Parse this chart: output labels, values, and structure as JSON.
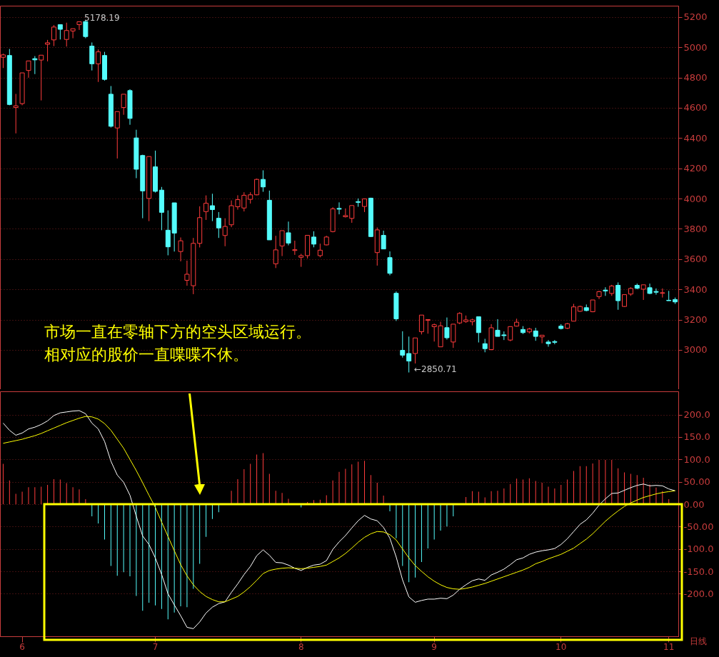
{
  "chart_data": [
    {
      "type": "candlestick",
      "categories": [
        null,
        null,
        null,
        "6",
        null,
        null,
        null,
        null,
        null,
        null,
        null,
        null,
        null,
        null,
        null,
        null,
        null,
        null,
        null,
        null,
        null,
        null,
        null,
        null,
        "7",
        null,
        null,
        null,
        null,
        null,
        null,
        null,
        null,
        null,
        null,
        null,
        null,
        null,
        null,
        null,
        null,
        null,
        null,
        null,
        null,
        null,
        null,
        "8",
        null,
        null,
        null,
        null,
        null,
        null,
        null,
        null,
        null,
        null,
        null,
        null,
        null,
        null,
        null,
        null,
        null,
        null,
        null,
        null,
        "9",
        null,
        null,
        null,
        null,
        null,
        null,
        null,
        null,
        null,
        null,
        null,
        null,
        null,
        null,
        null,
        null,
        null,
        null,
        null,
        "10",
        null,
        null,
        null,
        null,
        null,
        null,
        null,
        null,
        null,
        null,
        null,
        null,
        null,
        null,
        null,
        null,
        "11",
        null
      ],
      "ohlc": [
        [
          4934,
          4958,
          4863,
          4950
        ],
        [
          4946,
          4989,
          4617,
          4622
        ],
        [
          4602,
          4692,
          4431,
          4613
        ],
        [
          4628,
          4831,
          4617,
          4831
        ],
        [
          4847,
          4910,
          4799,
          4910
        ],
        [
          4925,
          4942,
          4823,
          4917
        ],
        [
          4916,
          4948,
          4649,
          4948
        ],
        [
          5020,
          5049,
          4907,
          5030
        ],
        [
          5049,
          5147,
          5008,
          5134
        ],
        [
          5150,
          5150,
          5052,
          5119
        ],
        [
          5052,
          5163,
          5005,
          5111
        ],
        [
          5108,
          5123,
          5060,
          5123
        ],
        [
          5150,
          5170,
          5115,
          5169
        ],
        [
          5170,
          5178.19,
          5060,
          5071
        ],
        [
          5008,
          5032,
          4847,
          4891
        ],
        [
          4891,
          4986,
          4771,
          4970
        ],
        [
          4946,
          4970,
          4780,
          4788
        ],
        [
          4690,
          4744,
          4470,
          4478
        ],
        [
          4467,
          4575,
          4265,
          4575
        ],
        [
          4602,
          4690,
          4554,
          4690
        ],
        [
          4714,
          4723,
          4488,
          4530
        ],
        [
          4401,
          4455,
          4135,
          4194
        ],
        [
          4285,
          4290,
          3870,
          4051
        ],
        [
          4001,
          4278,
          3851,
          4278
        ],
        [
          4210,
          4317,
          4040,
          4048
        ],
        [
          4056,
          4077,
          3791,
          3909
        ],
        [
          3791,
          3922,
          3625,
          3681
        ],
        [
          3972,
          3972,
          3650,
          3772
        ],
        [
          3650,
          3743,
          3585,
          3721
        ],
        [
          3460,
          3590,
          3424,
          3500
        ],
        [
          3424,
          3740,
          3368,
          3704
        ],
        [
          3704,
          3949,
          3677,
          3874
        ],
        [
          3914,
          4021,
          3859,
          3969
        ],
        [
          3953,
          4032,
          3851,
          3927
        ],
        [
          3870,
          3911,
          3740,
          3806
        ],
        [
          3756,
          3870,
          3685,
          3816
        ],
        [
          3827,
          3988,
          3811,
          3953
        ],
        [
          3946,
          4022,
          3927,
          3993
        ],
        [
          3938,
          4042,
          3915,
          4022
        ],
        [
          3995,
          4042,
          3967,
          4025
        ],
        [
          4025,
          4132,
          4022,
          4127
        ],
        [
          4127,
          4187,
          4045,
          4077
        ],
        [
          3989,
          4053,
          3727,
          3727
        ],
        [
          3569,
          3754,
          3541,
          3661
        ],
        [
          3687,
          3788,
          3620,
          3788
        ],
        [
          3774,
          3848,
          3691,
          3706
        ],
        [
          3657,
          3722,
          3628,
          3662
        ],
        [
          3612,
          3635,
          3549,
          3623
        ],
        [
          3623,
          3757,
          3604,
          3757
        ],
        [
          3746,
          3784,
          3678,
          3699
        ],
        [
          3623,
          3702,
          3612,
          3659
        ],
        [
          3694,
          3754,
          3691,
          3746
        ],
        [
          3782,
          3943,
          3777,
          3932
        ],
        [
          3935,
          3975,
          3896,
          3930
        ],
        [
          3880,
          3935,
          3875,
          3888
        ],
        [
          3869,
          3954,
          3840,
          3954
        ],
        [
          3980,
          4001,
          3946,
          3975
        ],
        [
          3948,
          4001,
          3911,
          3998
        ],
        [
          4003,
          4006,
          3746,
          3749
        ],
        [
          3643,
          3809,
          3557,
          3793
        ],
        [
          3757,
          3788,
          3667,
          3667
        ],
        [
          3610,
          3651,
          3493,
          3506
        ],
        [
          3374,
          3386,
          3191,
          3205
        ],
        [
          2997,
          3123,
          2949,
          2965
        ],
        [
          2976,
          3088,
          2850.71,
          2926
        ],
        [
          2976,
          3079,
          2910,
          3079
        ],
        [
          3120,
          3230,
          3102,
          3230
        ],
        [
          3195,
          3202,
          3107,
          3200
        ],
        [
          3153,
          3174,
          3055,
          3166
        ],
        [
          3020,
          3186,
          3020,
          3159
        ],
        [
          3147,
          3214,
          3068,
          3080
        ],
        [
          3052,
          3170,
          3013,
          3170
        ],
        [
          3178,
          3249,
          3170,
          3241
        ],
        [
          3187,
          3227,
          3179,
          3198
        ],
        [
          3186,
          3206,
          3162,
          3198
        ],
        [
          3219,
          3219,
          3049,
          3114
        ],
        [
          3041,
          3073,
          2984,
          3008
        ],
        [
          3002,
          3170,
          2997,
          3146
        ],
        [
          3130,
          3203,
          3089,
          3089
        ],
        [
          3099,
          3122,
          3065,
          3094
        ],
        [
          3065,
          3154,
          3057,
          3154
        ],
        [
          3157,
          3206,
          3154,
          3183
        ],
        [
          3135,
          3157,
          3105,
          3114
        ],
        [
          3119,
          3146,
          3109,
          3138
        ],
        [
          3125,
          3146,
          3060,
          3089
        ],
        [
          3086,
          3097,
          3044,
          3097
        ],
        [
          3052,
          3065,
          3021,
          3041
        ],
        [
          3055,
          3065,
          3037,
          3050
        ],
        [
          3157,
          3170,
          3135,
          3141
        ],
        [
          3143,
          3178,
          3138,
          3173
        ],
        [
          3190,
          3304,
          3190,
          3284
        ],
        [
          3255,
          3292,
          3252,
          3287
        ],
        [
          3279,
          3300,
          3255,
          3260
        ],
        [
          3252,
          3330,
          3249,
          3330
        ],
        [
          3352,
          3390,
          3336,
          3385
        ],
        [
          3395,
          3414,
          3357,
          3389
        ],
        [
          3373,
          3430,
          3357,
          3422
        ],
        [
          3427,
          3446,
          3265,
          3325
        ],
        [
          3287,
          3365,
          3284,
          3365
        ],
        [
          3369,
          3414,
          3357,
          3406
        ],
        [
          3427,
          3438,
          3401,
          3407
        ],
        [
          3401,
          3430,
          3330,
          3430
        ],
        [
          3411,
          3438,
          3368,
          3373
        ],
        [
          3386,
          3406,
          3365,
          3381
        ],
        [
          3374,
          3406,
          3346,
          3378
        ],
        [
          3328,
          3390,
          3325,
          3325
        ],
        [
          3333,
          3346,
          3304,
          3317
        ]
      ],
      "colors": [
        "#ff3c3c",
        "#54fcfc",
        "#ff3c3c",
        "#ff3c3c",
        "#ff3c3c",
        "#54fcfc",
        "#ff3c3c",
        "#ff3c3c",
        "#ff3c3c",
        "#54fcfc",
        "#ff3c3c",
        "#ff3c3c",
        "#ff3c3c",
        "#54fcfc",
        "#54fcfc",
        "#ff3c3c",
        "#54fcfc",
        "#54fcfc",
        "#ff3c3c",
        "#ff3c3c",
        "#54fcfc",
        "#54fcfc",
        "#54fcfc",
        "#ff3c3c",
        "#54fcfc",
        "#54fcfc",
        "#54fcfc",
        "#54fcfc",
        "#ff3c3c",
        "#ff3c3c",
        "#ff3c3c",
        "#ff3c3c",
        "#ff3c3c",
        "#54fcfc",
        "#54fcfc",
        "#ff3c3c",
        "#ff3c3c",
        "#ff3c3c",
        "#ff3c3c",
        "#ff3c3c",
        "#ff3c3c",
        "#54fcfc",
        "#54fcfc",
        "#ff3c3c",
        "#ff3c3c",
        "#54fcfc",
        "#ff3c3c",
        "#ff3c3c",
        "#ff3c3c",
        "#54fcfc",
        "#ff3c3c",
        "#ff3c3c",
        "#ff3c3c",
        "#54fcfc",
        "#ff3c3c",
        "#ff3c3c",
        "#54fcfc",
        "#ff3c3c",
        "#54fcfc",
        "#ff3c3c",
        "#54fcfc",
        "#54fcfc",
        "#54fcfc",
        "#54fcfc",
        "#54fcfc",
        "#ff3c3c",
        "#ff3c3c",
        "#ff3c3c",
        "#ff3c3c",
        "#ff3c3c",
        "#54fcfc",
        "#ff3c3c",
        "#ff3c3c",
        "#ff3c3c",
        "#ff3c3c",
        "#54fcfc",
        "#54fcfc",
        "#ff3c3c",
        "#54fcfc",
        "#54fcfc",
        "#ff3c3c",
        "#ff3c3c",
        "#54fcfc",
        "#ff3c3c",
        "#54fcfc",
        "#ff3c3c",
        "#54fcfc",
        "#54fcfc",
        "#54fcfc",
        "#ff3c3c",
        "#ff3c3c",
        "#ff3c3c",
        "#54fcfc",
        "#ff3c3c",
        "#ff3c3c",
        "#54fcfc",
        "#ff3c3c",
        "#54fcfc",
        "#ff3c3c",
        "#ff3c3c",
        "#54fcfc",
        "#ff3c3c",
        "#54fcfc",
        "#54fcfc",
        "#ff3c3c",
        "#54fcfc",
        "#54fcfc"
      ],
      "ylim": [
        2740,
        5275
      ],
      "yticks": [
        3000,
        3200,
        3400,
        3600,
        3800,
        4000,
        4200,
        4400,
        4600,
        4800,
        5000,
        5200
      ],
      "grid": "y",
      "tick_labels": "y",
      "annotations": [
        "市场一直在零轴下方的空头区域运行。",
        "相对应的股价一直喋喋不休。",
        "5178.19",
        "←2850.71"
      ]
    },
    {
      "type": "bar",
      "categories": [
        null,
        null,
        null,
        "6",
        null,
        null,
        null,
        null,
        null,
        null,
        null,
        null,
        null,
        null,
        null,
        null,
        null,
        null,
        null,
        null,
        null,
        null,
        null,
        null,
        "7",
        null,
        null,
        null,
        null,
        null,
        null,
        null,
        null,
        null,
        null,
        null,
        null,
        null,
        null,
        null,
        null,
        null,
        null,
        null,
        null,
        null,
        null,
        "8",
        null,
        null,
        null,
        null,
        null,
        null,
        null,
        null,
        null,
        null,
        null,
        null,
        null,
        null,
        null,
        null,
        null,
        null,
        null,
        null,
        "9",
        null,
        null,
        null,
        null,
        null,
        null,
        null,
        null,
        null,
        null,
        null,
        null,
        null,
        null,
        null,
        null,
        null,
        null,
        null,
        "10",
        null,
        null,
        null,
        null,
        null,
        null,
        null,
        null,
        null,
        null,
        null,
        null,
        null,
        null,
        null,
        null,
        "11",
        null
      ],
      "series": [
        {
          "type": "bar",
          "values": [
            90,
            53,
            23,
            28,
            38,
            38,
            39,
            43,
            56,
            55,
            47,
            38,
            33,
            11,
            -27,
            -43,
            -79,
            -138,
            -160,
            -152,
            -161,
            -205,
            -238,
            -220,
            -226,
            -234,
            -257,
            -242,
            -228,
            -230,
            -189,
            -133,
            -73,
            -33,
            -18,
            0,
            30,
            56,
            78,
            90,
            111,
            114,
            68,
            30,
            25,
            12,
            0,
            -7,
            5,
            9,
            10,
            20,
            53,
            72,
            79,
            89,
            95,
            97,
            65,
            48,
            19,
            -16,
            -76,
            -138,
            -174,
            -164,
            -129,
            -99,
            -79,
            -59,
            -50,
            -27,
            0,
            16,
            29,
            28,
            15,
            29,
            30,
            35,
            45,
            57,
            55,
            58,
            52,
            48,
            39,
            35,
            43,
            55,
            74,
            85,
            85,
            91,
            99,
            99,
            99,
            80,
            71,
            68,
            65,
            59,
            44,
            37,
            29,
            11,
            0
          ],
          "colors": [
            "#ff3c3c",
            "#ff3c3c",
            "#ff3c3c",
            "#ff3c3c",
            "#ff3c3c",
            "#ff3c3c",
            "#ff3c3c",
            "#ff3c3c",
            "#ff3c3c",
            "#ff3c3c",
            "#ff3c3c",
            "#ff3c3c",
            "#ff3c3c",
            "#ff3c3c",
            "#54fcfc",
            "#54fcfc",
            "#54fcfc",
            "#54fcfc",
            "#54fcfc",
            "#54fcfc",
            "#54fcfc",
            "#54fcfc",
            "#54fcfc",
            "#54fcfc",
            "#54fcfc",
            "#54fcfc",
            "#54fcfc",
            "#54fcfc",
            "#54fcfc",
            "#54fcfc",
            "#54fcfc",
            "#54fcfc",
            "#54fcfc",
            "#54fcfc",
            "#54fcfc",
            "#ff3c3c",
            "#ff3c3c",
            "#ff3c3c",
            "#ff3c3c",
            "#ff3c3c",
            "#ff3c3c",
            "#ff3c3c",
            "#ff3c3c",
            "#ff3c3c",
            "#ff3c3c",
            "#ff3c3c",
            "#ff3c3c",
            "#54fcfc",
            "#ff3c3c",
            "#ff3c3c",
            "#ff3c3c",
            "#ff3c3c",
            "#ff3c3c",
            "#ff3c3c",
            "#ff3c3c",
            "#ff3c3c",
            "#ff3c3c",
            "#ff3c3c",
            "#ff3c3c",
            "#ff3c3c",
            "#ff3c3c",
            "#54fcfc",
            "#54fcfc",
            "#54fcfc",
            "#54fcfc",
            "#54fcfc",
            "#54fcfc",
            "#54fcfc",
            "#54fcfc",
            "#54fcfc",
            "#54fcfc",
            "#54fcfc",
            "#ff3c3c",
            "#ff3c3c",
            "#ff3c3c",
            "#ff3c3c",
            "#ff3c3c",
            "#ff3c3c",
            "#ff3c3c",
            "#ff3c3c",
            "#ff3c3c",
            "#ff3c3c",
            "#ff3c3c",
            "#ff3c3c",
            "#ff3c3c",
            "#ff3c3c",
            "#ff3c3c",
            "#ff3c3c",
            "#ff3c3c",
            "#ff3c3c",
            "#ff3c3c",
            "#ff3c3c",
            "#ff3c3c",
            "#ff3c3c",
            "#ff3c3c",
            "#ff3c3c",
            "#ff3c3c",
            "#ff3c3c",
            "#ff3c3c",
            "#ff3c3c",
            "#ff3c3c",
            "#ff3c3c",
            "#ff3c3c",
            "#ff3c3c",
            "#ff3c3c",
            "#ff3c3c",
            "#ff3c3c"
          ]
        },
        {
          "type": "line",
          "color": "#ffffff",
          "values": [
            181,
            165,
            154,
            159,
            168,
            172,
            178,
            186,
            198,
            204,
            206,
            208,
            209,
            202,
            181,
            168,
            140,
            96,
            65,
            49,
            20,
            -27,
            -71,
            -90,
            -120,
            -157,
            -200,
            -225,
            -249,
            -275,
            -278,
            -263,
            -243,
            -230,
            -222,
            -218,
            -197,
            -178,
            -157,
            -139,
            -115,
            -102,
            -114,
            -130,
            -131,
            -136,
            -143,
            -148,
            -141,
            -136,
            -134,
            -126,
            -101,
            -84,
            -70,
            -53,
            -37,
            -25,
            -33,
            -37,
            -52,
            -76,
            -118,
            -169,
            -207,
            -219,
            -215,
            -212,
            -212,
            -210,
            -211,
            -203,
            -190,
            -180,
            -171,
            -167,
            -170,
            -158,
            -152,
            -145,
            -135,
            -124,
            -120,
            -112,
            -107,
            -104,
            -102,
            -99,
            -90,
            -77,
            -61,
            -45,
            -35,
            -20,
            -2,
            12,
            24,
            25,
            31,
            37,
            42,
            45,
            41,
            42,
            41,
            34,
            30
          ]
        },
        {
          "type": "line",
          "color": "#ffff00",
          "values": [
            136,
            139,
            142,
            145,
            149,
            153,
            158,
            164,
            170,
            176,
            182,
            187,
            192,
            196,
            195,
            190,
            180,
            165,
            145,
            125,
            100,
            75,
            48,
            20,
            -7,
            -40,
            -72,
            -104,
            -135,
            -160,
            -180,
            -195,
            -206,
            -213,
            -218,
            -218,
            -212,
            -206,
            -196,
            -184,
            -170,
            -155,
            -148,
            -145,
            -143,
            -142,
            -143,
            -144,
            -143,
            -141,
            -139,
            -136,
            -128,
            -120,
            -110,
            -98,
            -85,
            -74,
            -66,
            -61,
            -62,
            -68,
            -80,
            -100,
            -120,
            -137,
            -150,
            -162,
            -172,
            -180,
            -186,
            -189,
            -190,
            -188,
            -185,
            -181,
            -177,
            -172,
            -167,
            -162,
            -157,
            -152,
            -147,
            -141,
            -133,
            -128,
            -122,
            -117,
            -112,
            -105,
            -98,
            -88,
            -78,
            -66,
            -52,
            -38,
            -26,
            -15,
            -5,
            3,
            9,
            15,
            19,
            23,
            26,
            28,
            30
          ]
        }
      ],
      "ylim": [
        -295,
        252
      ],
      "yticks": [
        {
          "value": -200,
          "label": "-200.0"
        },
        {
          "value": -150,
          "label": "-150.0"
        },
        {
          "value": -100,
          "label": "-100.0"
        },
        {
          "value": -50,
          "label": "-50.00"
        },
        {
          "value": 0,
          "label": "0.00"
        },
        {
          "value": 50,
          "label": "50.00"
        },
        {
          "value": 100,
          "label": "100.0"
        },
        {
          "value": 150,
          "label": "150.0"
        },
        {
          "value": 200,
          "label": "200.0"
        }
      ],
      "grid": "y",
      "annotations": [
        "日线"
      ]
    }
  ]
}
